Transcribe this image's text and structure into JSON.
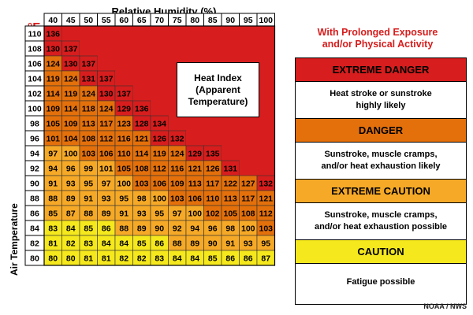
{
  "chart_data": {
    "type": "heatmap",
    "title": "Relative Humidity (%)",
    "xlabel": "Relative Humidity (%)",
    "ylabel": "Air Temperature",
    "unit": "°F",
    "x": [
      40,
      45,
      50,
      55,
      60,
      65,
      70,
      75,
      80,
      85,
      90,
      95,
      100
    ],
    "y": [
      110,
      108,
      106,
      104,
      102,
      100,
      98,
      96,
      94,
      92,
      90,
      88,
      86,
      84,
      82,
      80
    ],
    "values": [
      [
        136,
        null,
        null,
        null,
        null,
        null,
        null,
        null,
        null,
        null,
        null,
        null,
        null
      ],
      [
        130,
        137,
        null,
        null,
        null,
        null,
        null,
        null,
        null,
        null,
        null,
        null,
        null
      ],
      [
        124,
        130,
        137,
        null,
        null,
        null,
        null,
        null,
        null,
        null,
        null,
        null,
        null
      ],
      [
        119,
        124,
        131,
        137,
        null,
        null,
        null,
        null,
        null,
        null,
        null,
        null,
        null
      ],
      [
        114,
        119,
        124,
        130,
        137,
        null,
        null,
        null,
        null,
        null,
        null,
        null,
        null
      ],
      [
        109,
        114,
        118,
        124,
        129,
        136,
        null,
        null,
        null,
        null,
        null,
        null,
        null
      ],
      [
        105,
        109,
        113,
        117,
        123,
        128,
        134,
        null,
        null,
        null,
        null,
        null,
        null
      ],
      [
        101,
        104,
        108,
        112,
        116,
        121,
        126,
        132,
        null,
        null,
        null,
        null,
        null
      ],
      [
        97,
        100,
        103,
        106,
        110,
        114,
        119,
        124,
        129,
        135,
        null,
        null,
        null
      ],
      [
        94,
        96,
        99,
        101,
        105,
        108,
        112,
        116,
        121,
        126,
        131,
        null,
        null
      ],
      [
        91,
        93,
        95,
        97,
        100,
        103,
        106,
        109,
        113,
        117,
        122,
        127,
        132
      ],
      [
        88,
        89,
        91,
        93,
        95,
        98,
        100,
        103,
        106,
        110,
        113,
        117,
        121
      ],
      [
        85,
        87,
        88,
        89,
        91,
        93,
        95,
        97,
        100,
        102,
        105,
        108,
        112
      ],
      [
        83,
        84,
        85,
        86,
        88,
        89,
        90,
        92,
        94,
        96,
        98,
        100,
        103
      ],
      [
        81,
        82,
        83,
        84,
        84,
        85,
        86,
        88,
        89,
        90,
        91,
        93,
        95
      ],
      [
        80,
        80,
        81,
        81,
        82,
        82,
        83,
        84,
        84,
        85,
        86,
        86,
        87
      ]
    ],
    "categories": [
      {
        "name": "EXTREME DANGER",
        "color": "#d71d1d"
      },
      {
        "name": "DANGER",
        "color": "#e3700b"
      },
      {
        "name": "EXTREME CAUTION",
        "color": "#f5a927"
      },
      {
        "name": "CAUTION",
        "color": "#f5e81d"
      }
    ],
    "category_rows": [
      [
        0,
        -1,
        -1,
        -1,
        -1,
        -1,
        -1,
        -1,
        -1,
        -1,
        -1,
        -1,
        -1
      ],
      [
        0,
        0,
        -1,
        -1,
        -1,
        -1,
        -1,
        -1,
        -1,
        -1,
        -1,
        -1,
        -1
      ],
      [
        1,
        0,
        0,
        -1,
        -1,
        -1,
        -1,
        -1,
        -1,
        -1,
        -1,
        -1,
        -1
      ],
      [
        1,
        1,
        0,
        0,
        -1,
        -1,
        -1,
        -1,
        -1,
        -1,
        -1,
        -1,
        -1
      ],
      [
        1,
        1,
        1,
        0,
        0,
        -1,
        -1,
        -1,
        -1,
        -1,
        -1,
        -1,
        -1
      ],
      [
        1,
        1,
        1,
        1,
        0,
        0,
        -1,
        -1,
        -1,
        -1,
        -1,
        -1,
        -1
      ],
      [
        1,
        1,
        1,
        1,
        1,
        0,
        0,
        -1,
        -1,
        -1,
        -1,
        -1,
        -1
      ],
      [
        1,
        1,
        1,
        1,
        1,
        1,
        0,
        0,
        -1,
        -1,
        -1,
        -1,
        -1
      ],
      [
        2,
        2,
        1,
        1,
        1,
        1,
        1,
        1,
        0,
        0,
        -1,
        -1,
        -1
      ],
      [
        2,
        2,
        2,
        2,
        1,
        1,
        1,
        1,
        1,
        1,
        0,
        -1,
        -1
      ],
      [
        2,
        2,
        2,
        2,
        2,
        1,
        1,
        1,
        1,
        1,
        1,
        1,
        0
      ],
      [
        2,
        2,
        2,
        2,
        2,
        2,
        2,
        1,
        1,
        1,
        1,
        1,
        1
      ],
      [
        2,
        2,
        2,
        2,
        2,
        2,
        2,
        2,
        2,
        1,
        1,
        1,
        1
      ],
      [
        3,
        3,
        3,
        3,
        2,
        2,
        2,
        2,
        2,
        2,
        2,
        2,
        1
      ],
      [
        3,
        3,
        3,
        3,
        3,
        3,
        3,
        2,
        2,
        2,
        2,
        2,
        2
      ],
      [
        3,
        3,
        3,
        3,
        3,
        3,
        3,
        3,
        3,
        3,
        3,
        3,
        3
      ]
    ],
    "empty_color": "#d71d1d"
  },
  "heat_index_box": [
    "Heat Index",
    "(Apparent",
    "Temperature)"
  ],
  "legend": {
    "title_lines": [
      "With Prolonged Exposure",
      "and/or Physical Activity"
    ],
    "items": [
      {
        "label": "EXTREME DANGER",
        "desc": [
          "Heat stroke or sunstroke",
          "highly likely"
        ]
      },
      {
        "label": "DANGER",
        "desc": [
          "Sunstroke, muscle cramps,",
          "and/or heat exhaustion likely"
        ]
      },
      {
        "label": "EXTREME CAUTION",
        "desc": [
          "Sunstroke, muscle cramps,",
          "and/or heat exhaustion possible"
        ]
      },
      {
        "label": "CAUTION",
        "desc": [
          "Fatigue possible"
        ]
      }
    ]
  },
  "credit": "NOAA / NWS"
}
